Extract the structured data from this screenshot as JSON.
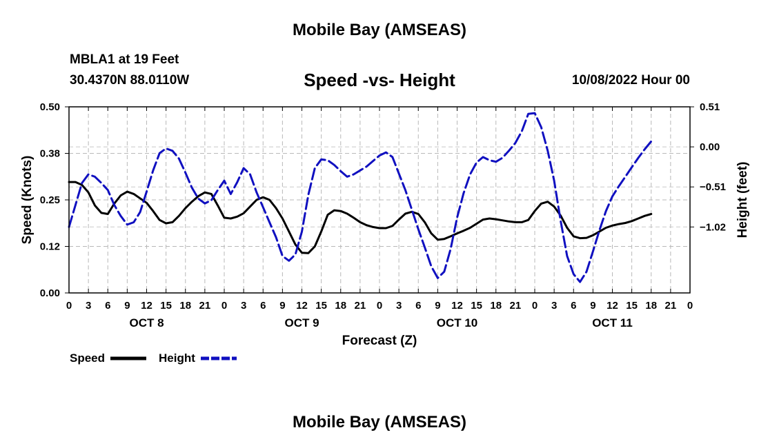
{
  "header": {
    "title": "Mobile Bay (AMSEAS)",
    "station": "MBLA1 at 19 Feet",
    "coords": "30.4370N  88.0110W",
    "subtitle": "Speed -vs- Height",
    "datetime": "10/08/2022 Hour 00",
    "bottom_title": "Mobile Bay (AMSEAS)"
  },
  "chart_data": {
    "type": "line",
    "title": "Speed -vs- Height",
    "xlabel": "Forecast (Z)",
    "ylabel_left": "Speed (Knots)",
    "ylabel_right": "Height (feet)",
    "x_range_hours": [
      0,
      96
    ],
    "ylim_left": [
      0,
      0.5
    ],
    "ylim_right": [
      -1.86,
      0.51
    ],
    "left_ticks": [
      {
        "v": 0,
        "label": "0.00"
      },
      {
        "v": 0.125,
        "label": "0.12"
      },
      {
        "v": 0.25,
        "label": "0.25"
      },
      {
        "v": 0.375,
        "label": "0.38"
      },
      {
        "v": 0.5,
        "label": "0.50"
      }
    ],
    "right_ticks": [
      {
        "v": 0.51,
        "label": "0.51"
      },
      {
        "v": 0.0,
        "label": "0.00"
      },
      {
        "v": -0.51,
        "label": "−0.51"
      },
      {
        "v": -1.02,
        "label": "−1.02"
      }
    ],
    "x_ticks": [
      "0",
      "3",
      "6",
      "9",
      "12",
      "15",
      "18",
      "21",
      "0",
      "3",
      "6",
      "9",
      "12",
      "15",
      "18",
      "21",
      "0",
      "3",
      "6",
      "9",
      "12",
      "15",
      "18",
      "21",
      "0",
      "3",
      "6",
      "9",
      "12",
      "15",
      "18",
      "21",
      "0"
    ],
    "day_labels": [
      {
        "label": "OCT 8",
        "hour": 12
      },
      {
        "label": "OCT 9",
        "hour": 36
      },
      {
        "label": "OCT 10",
        "hour": 60
      },
      {
        "label": "OCT 11",
        "hour": 84
      }
    ],
    "grid": true,
    "legend": "bottom-left",
    "series": [
      {
        "name": "Speed",
        "axis": "left",
        "color": "#000000",
        "style": "solid",
        "points": [
          [
            0,
            0.298
          ],
          [
            1,
            0.298
          ],
          [
            2,
            0.29
          ],
          [
            3,
            0.27
          ],
          [
            4,
            0.235
          ],
          [
            5,
            0.215
          ],
          [
            6,
            0.212
          ],
          [
            7,
            0.24
          ],
          [
            8,
            0.262
          ],
          [
            9,
            0.272
          ],
          [
            10,
            0.266
          ],
          [
            11,
            0.254
          ],
          [
            12,
            0.242
          ],
          [
            13,
            0.22
          ],
          [
            14,
            0.196
          ],
          [
            15,
            0.187
          ],
          [
            16,
            0.19
          ],
          [
            17,
            0.207
          ],
          [
            18,
            0.228
          ],
          [
            19,
            0.245
          ],
          [
            20,
            0.26
          ],
          [
            21,
            0.27
          ],
          [
            22,
            0.266
          ],
          [
            23,
            0.235
          ],
          [
            24,
            0.202
          ],
          [
            25,
            0.2
          ],
          [
            26,
            0.205
          ],
          [
            27,
            0.214
          ],
          [
            28,
            0.232
          ],
          [
            29,
            0.25
          ],
          [
            30,
            0.257
          ],
          [
            31,
            0.25
          ],
          [
            32,
            0.228
          ],
          [
            33,
            0.2
          ],
          [
            34,
            0.165
          ],
          [
            35,
            0.13
          ],
          [
            36,
            0.108
          ],
          [
            37,
            0.107
          ],
          [
            38,
            0.125
          ],
          [
            39,
            0.165
          ],
          [
            40,
            0.21
          ],
          [
            41,
            0.222
          ],
          [
            42,
            0.22
          ],
          [
            43,
            0.213
          ],
          [
            44,
            0.202
          ],
          [
            45,
            0.19
          ],
          [
            46,
            0.182
          ],
          [
            47,
            0.177
          ],
          [
            48,
            0.174
          ],
          [
            49,
            0.174
          ],
          [
            50,
            0.18
          ],
          [
            51,
            0.197
          ],
          [
            52,
            0.213
          ],
          [
            53,
            0.218
          ],
          [
            54,
            0.212
          ],
          [
            55,
            0.19
          ],
          [
            56,
            0.16
          ],
          [
            57,
            0.143
          ],
          [
            58,
            0.145
          ],
          [
            59,
            0.152
          ],
          [
            60,
            0.16
          ],
          [
            61,
            0.167
          ],
          [
            62,
            0.175
          ],
          [
            63,
            0.186
          ],
          [
            64,
            0.197
          ],
          [
            65,
            0.2
          ],
          [
            66,
            0.198
          ],
          [
            67,
            0.195
          ],
          [
            68,
            0.192
          ],
          [
            69,
            0.19
          ],
          [
            70,
            0.19
          ],
          [
            71,
            0.196
          ],
          [
            72,
            0.22
          ],
          [
            73,
            0.24
          ],
          [
            74,
            0.245
          ],
          [
            75,
            0.232
          ],
          [
            76,
            0.208
          ],
          [
            77,
            0.175
          ],
          [
            78,
            0.152
          ],
          [
            79,
            0.147
          ],
          [
            80,
            0.148
          ],
          [
            81,
            0.155
          ],
          [
            82,
            0.165
          ],
          [
            83,
            0.175
          ],
          [
            84,
            0.181
          ],
          [
            85,
            0.185
          ],
          [
            86,
            0.188
          ],
          [
            87,
            0.193
          ],
          [
            88,
            0.2
          ],
          [
            89,
            0.207
          ],
          [
            90,
            0.212
          ]
        ]
      },
      {
        "name": "Height",
        "axis": "right",
        "color": "#1010c0",
        "style": "dashed",
        "points": [
          [
            0,
            -1.02
          ],
          [
            1,
            -0.74
          ],
          [
            2,
            -0.46
          ],
          [
            3,
            -0.35
          ],
          [
            4,
            -0.38
          ],
          [
            5,
            -0.46
          ],
          [
            6,
            -0.55
          ],
          [
            7,
            -0.74
          ],
          [
            8,
            -0.88
          ],
          [
            9,
            -0.99
          ],
          [
            10,
            -0.96
          ],
          [
            11,
            -0.83
          ],
          [
            12,
            -0.57
          ],
          [
            13,
            -0.3
          ],
          [
            14,
            -0.08
          ],
          [
            15,
            -0.02
          ],
          [
            16,
            -0.05
          ],
          [
            17,
            -0.15
          ],
          [
            18,
            -0.33
          ],
          [
            19,
            -0.52
          ],
          [
            20,
            -0.66
          ],
          [
            21,
            -0.72
          ],
          [
            22,
            -0.68
          ],
          [
            23,
            -0.55
          ],
          [
            24,
            -0.43
          ],
          [
            25,
            -0.6
          ],
          [
            26,
            -0.45
          ],
          [
            27,
            -0.27
          ],
          [
            28,
            -0.35
          ],
          [
            29,
            -0.58
          ],
          [
            30,
            -0.77
          ],
          [
            31,
            -0.96
          ],
          [
            32,
            -1.15
          ],
          [
            33,
            -1.39
          ],
          [
            34,
            -1.45
          ],
          [
            35,
            -1.37
          ],
          [
            36,
            -1.08
          ],
          [
            37,
            -0.61
          ],
          [
            38,
            -0.27
          ],
          [
            39,
            -0.16
          ],
          [
            40,
            -0.17
          ],
          [
            41,
            -0.23
          ],
          [
            42,
            -0.31
          ],
          [
            43,
            -0.38
          ],
          [
            44,
            -0.35
          ],
          [
            45,
            -0.3
          ],
          [
            46,
            -0.25
          ],
          [
            47,
            -0.18
          ],
          [
            48,
            -0.11
          ],
          [
            49,
            -0.07
          ],
          [
            50,
            -0.13
          ],
          [
            51,
            -0.34
          ],
          [
            52,
            -0.55
          ],
          [
            53,
            -0.8
          ],
          [
            54,
            -1.05
          ],
          [
            55,
            -1.28
          ],
          [
            56,
            -1.52
          ],
          [
            57,
            -1.67
          ],
          [
            58,
            -1.59
          ],
          [
            59,
            -1.3
          ],
          [
            60,
            -0.9
          ],
          [
            61,
            -0.59
          ],
          [
            62,
            -0.35
          ],
          [
            63,
            -0.2
          ],
          [
            64,
            -0.13
          ],
          [
            65,
            -0.17
          ],
          [
            66,
            -0.19
          ],
          [
            67,
            -0.14
          ],
          [
            68,
            -0.05
          ],
          [
            69,
            0.05
          ],
          [
            70,
            0.2
          ],
          [
            71,
            0.42
          ],
          [
            72,
            0.43
          ],
          [
            73,
            0.25
          ],
          [
            74,
            -0.05
          ],
          [
            75,
            -0.43
          ],
          [
            76,
            -0.94
          ],
          [
            77,
            -1.39
          ],
          [
            78,
            -1.62
          ],
          [
            79,
            -1.72
          ],
          [
            80,
            -1.59
          ],
          [
            81,
            -1.33
          ],
          [
            82,
            -1.06
          ],
          [
            83,
            -0.82
          ],
          [
            84,
            -0.63
          ],
          [
            85,
            -0.5
          ],
          [
            86,
            -0.38
          ],
          [
            87,
            -0.26
          ],
          [
            88,
            -0.14
          ],
          [
            89,
            -0.03
          ],
          [
            90,
            0.07
          ]
        ]
      }
    ]
  }
}
